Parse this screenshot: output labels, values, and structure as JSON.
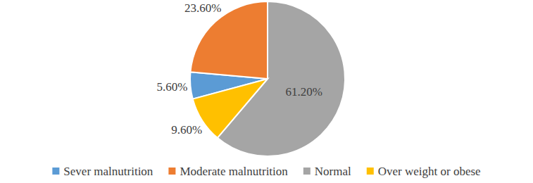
{
  "chart_data": {
    "type": "pie",
    "categories": [
      "Sever malnutrition",
      "Moderate malnutrition",
      "Normal",
      "Over weight or obese"
    ],
    "values": [
      5.6,
      23.6,
      61.2,
      9.6
    ],
    "value_labels": [
      "5.60%",
      "23.60%",
      "61.20%",
      "9.60%"
    ],
    "colors": [
      "#5b9bd5",
      "#ed7d31",
      "#a5a5a5",
      "#ffc000"
    ],
    "data_labels": true,
    "legend": "bottom"
  }
}
